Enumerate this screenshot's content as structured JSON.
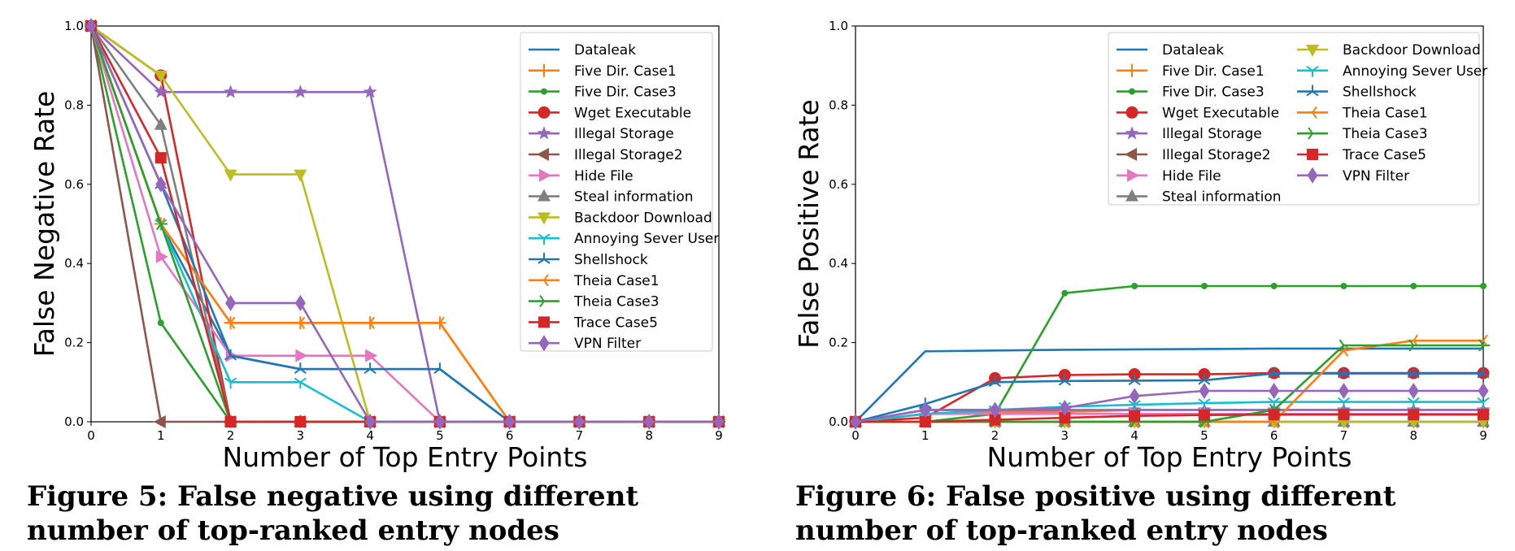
{
  "captions": {
    "fig5": "Figure 5: False negative using different number of top-ranked entry nodes",
    "fig6": "Figure 6: False positive using different number of top-ranked entry nodes"
  },
  "chart_data": [
    {
      "type": "line",
      "xlabel": "Number of Top Entry Points",
      "ylabel": "False Negative Rate",
      "xlim": [
        0,
        9
      ],
      "ylim": [
        0,
        1.0
      ],
      "xticks": [
        0,
        1,
        2,
        3,
        4,
        5,
        6,
        7,
        8,
        9
      ],
      "yticks": [
        0.0,
        0.2,
        0.4,
        0.6,
        0.8,
        1.0
      ],
      "grid": false,
      "legend_placement": "top-right",
      "legend_columns": 1,
      "x": [
        0,
        1,
        2,
        3,
        4,
        5,
        6,
        7,
        8,
        9
      ],
      "series": [
        {
          "name": "Dataleak",
          "color": "#1f77b4",
          "marker": "none",
          "values": [
            1.0,
            0.5,
            0.167,
            0.133,
            0.133,
            0.133,
            0,
            0,
            0,
            0
          ]
        },
        {
          "name": "Five Dir. Case1",
          "color": "#ff7f0e",
          "marker": "plus",
          "values": [
            1.0,
            0.5,
            0.25,
            0.25,
            0.25,
            0.25,
            0,
            0,
            0,
            0
          ]
        },
        {
          "name": "Five Dir. Case3",
          "color": "#2ca02c",
          "marker": "dot",
          "values": [
            1.0,
            0.25,
            0,
            0,
            0,
            0,
            0,
            0,
            0,
            0
          ]
        },
        {
          "name": "Wget Executable",
          "color": "#d62728",
          "marker": "circle",
          "values": [
            1.0,
            0.875,
            0,
            0,
            0,
            0,
            0,
            0,
            0,
            0
          ]
        },
        {
          "name": "Illegal Storage",
          "color": "#9467bd",
          "marker": "star",
          "values": [
            1.0,
            0.833,
            0.833,
            0.833,
            0.833,
            0,
            0,
            0,
            0,
            0
          ]
        },
        {
          "name": "Illegal Storage2",
          "color": "#8c564b",
          "marker": "triangle-left",
          "values": [
            1.0,
            0,
            0,
            0,
            0,
            0,
            0,
            0,
            0,
            0
          ]
        },
        {
          "name": "Hide File",
          "color": "#e377c2",
          "marker": "triangle-right",
          "values": [
            1.0,
            0.417,
            0.167,
            0.167,
            0.167,
            0,
            0,
            0,
            0,
            0
          ]
        },
        {
          "name": "Steal information",
          "color": "#7f7f7f",
          "marker": "triangle-up",
          "values": [
            1.0,
            0.75,
            0,
            0,
            0,
            0,
            0,
            0,
            0,
            0
          ]
        },
        {
          "name": "Backdoor Download",
          "color": "#bcbd22",
          "marker": "triangle-down",
          "values": [
            1.0,
            0.875,
            0.625,
            0.625,
            0,
            0,
            0,
            0,
            0,
            0
          ]
        },
        {
          "name": "Annoying Sever User",
          "color": "#17becf",
          "marker": "tri-down",
          "values": [
            1.0,
            0.5,
            0.1,
            0.1,
            0,
            0,
            0,
            0,
            0,
            0
          ]
        },
        {
          "name": "Shellshock",
          "color": "#1f77b4",
          "marker": "tri-up",
          "values": [
            1.0,
            0.6,
            0.167,
            0.133,
            0.133,
            0.133,
            0,
            0,
            0,
            0
          ]
        },
        {
          "name": "Theia Case1",
          "color": "#ff7f0e",
          "marker": "tri-left",
          "values": [
            1.0,
            0.5,
            0.25,
            0.25,
            0.25,
            0.25,
            0,
            0,
            0,
            0
          ]
        },
        {
          "name": "Theia Case3",
          "color": "#2ca02c",
          "marker": "tri-right",
          "values": [
            1.0,
            0.5,
            0,
            0,
            0,
            0,
            0,
            0,
            0,
            0
          ]
        },
        {
          "name": "Trace Case5",
          "color": "#d62728",
          "marker": "square",
          "values": [
            1.0,
            0.667,
            0,
            0,
            0,
            0,
            0,
            0,
            0,
            0
          ]
        },
        {
          "name": "VPN Filter",
          "color": "#9467bd",
          "marker": "diamond",
          "values": [
            1.0,
            0.6,
            0.3,
            0.3,
            0,
            0,
            0,
            0,
            0,
            0
          ]
        }
      ]
    },
    {
      "type": "line",
      "xlabel": "Number of Top Entry Points",
      "ylabel": "False Positive Rate",
      "xlim": [
        0,
        9
      ],
      "ylim": [
        0,
        1.0
      ],
      "xticks": [
        0,
        1,
        2,
        3,
        4,
        5,
        6,
        7,
        8,
        9
      ],
      "yticks": [
        0.0,
        0.2,
        0.4,
        0.6,
        0.8,
        1.0
      ],
      "grid": false,
      "legend_placement": "top-right",
      "legend_columns": 2,
      "x": [
        0,
        1,
        2,
        3,
        4,
        5,
        6,
        7,
        8,
        9
      ],
      "series": [
        {
          "name": "Dataleak",
          "color": "#1f77b4",
          "marker": "none",
          "values": [
            0,
            0.178,
            0.18,
            0.182,
            0.183,
            0.184,
            0.185,
            0.185,
            0.185,
            0.185
          ]
        },
        {
          "name": "Five Dir. Case1",
          "color": "#ff7f0e",
          "marker": "plus",
          "values": [
            0,
            0.02,
            0.025,
            0.025,
            0.03,
            0.03,
            0.03,
            0.03,
            0.03,
            0.03
          ]
        },
        {
          "name": "Five Dir. Case3",
          "color": "#2ca02c",
          "marker": "dot",
          "values": [
            0,
            0,
            0.02,
            0.325,
            0.343,
            0.343,
            0.343,
            0.343,
            0.343,
            0.343
          ]
        },
        {
          "name": "Wget Executable",
          "color": "#d62728",
          "marker": "circle",
          "values": [
            0,
            0.01,
            0.11,
            0.118,
            0.12,
            0.12,
            0.123,
            0.123,
            0.123,
            0.123
          ]
        },
        {
          "name": "Illegal Storage",
          "color": "#9467bd",
          "marker": "star",
          "values": [
            0,
            0.03,
            0.03,
            0.03,
            0.03,
            0.03,
            0.03,
            0.03,
            0.03,
            0.03
          ]
        },
        {
          "name": "Illegal Storage2",
          "color": "#8c564b",
          "marker": "triangle-left",
          "values": [
            0,
            0,
            0,
            0,
            0,
            0,
            0,
            0,
            0,
            0
          ]
        },
        {
          "name": "Hide File",
          "color": "#e377c2",
          "marker": "triangle-right",
          "values": [
            0,
            0.02,
            0.02,
            0.02,
            0.02,
            0.02,
            0.02,
            0.02,
            0.02,
            0.02
          ]
        },
        {
          "name": "Steal information",
          "color": "#7f7f7f",
          "marker": "triangle-up",
          "values": [
            0,
            0,
            0,
            0,
            0,
            0,
            0,
            0,
            0,
            0
          ]
        },
        {
          "name": "Backdoor Download",
          "color": "#bcbd22",
          "marker": "triangle-down",
          "values": [
            0,
            0,
            0,
            0,
            0,
            0,
            0,
            0,
            0,
            0
          ]
        },
        {
          "name": "Annoying Sever User",
          "color": "#17becf",
          "marker": "tri-down",
          "values": [
            0,
            0.02,
            0.03,
            0.038,
            0.043,
            0.047,
            0.05,
            0.05,
            0.05,
            0.05
          ]
        },
        {
          "name": "Shellshock",
          "color": "#1f77b4",
          "marker": "tri-up",
          "values": [
            0,
            0.045,
            0.1,
            0.103,
            0.104,
            0.105,
            0.122,
            0.122,
            0.122,
            0.122
          ]
        },
        {
          "name": "Theia Case1",
          "color": "#ff7f0e",
          "marker": "tri-left",
          "values": [
            0,
            0,
            0,
            0,
            0,
            0,
            0,
            0.18,
            0.205,
            0.205
          ]
        },
        {
          "name": "Theia Case3",
          "color": "#2ca02c",
          "marker": "tri-right",
          "values": [
            0,
            0,
            0,
            0,
            0,
            0,
            0.03,
            0.193,
            0.193,
            0.193
          ]
        },
        {
          "name": "Trace Case5",
          "color": "#d62728",
          "marker": "square",
          "values": [
            0,
            0,
            0.005,
            0.01,
            0.015,
            0.017,
            0.018,
            0.018,
            0.018,
            0.018
          ]
        },
        {
          "name": "VPN Filter",
          "color": "#9467bd",
          "marker": "diamond",
          "values": [
            0,
            0.03,
            0.03,
            0.035,
            0.065,
            0.078,
            0.078,
            0.078,
            0.078,
            0.078
          ]
        }
      ]
    }
  ]
}
